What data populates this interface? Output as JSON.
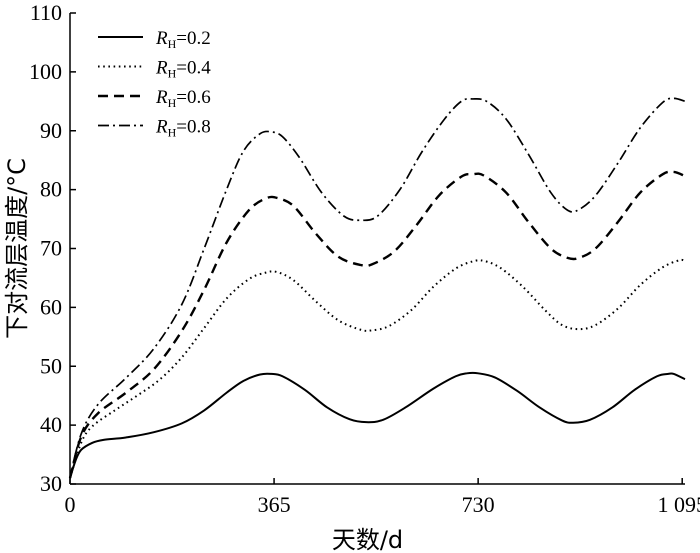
{
  "chart_data": {
    "type": "line",
    "title": "",
    "xlabel": "天数/d",
    "ylabel": "下对流层温度/°C",
    "xlim": [
      0,
      1100
    ],
    "ylim": [
      30,
      110
    ],
    "x_ticks": [
      0,
      365,
      730,
      1095
    ],
    "x_tick_labels": [
      "0",
      "365",
      "730",
      "1 095"
    ],
    "y_ticks": [
      30,
      40,
      50,
      60,
      70,
      80,
      90,
      100,
      110
    ],
    "y_tick_labels": [
      "30",
      "40",
      "50",
      "60",
      "70",
      "80",
      "90",
      "100",
      "110"
    ],
    "grid": false,
    "legend_position": "top-left",
    "series": [
      {
        "name": "R_H=0.2",
        "legend_main": "R",
        "legend_sub": "H",
        "legend_value": "=0.2",
        "dash": "solid",
        "points": [
          [
            0,
            31
          ],
          [
            10,
            34
          ],
          [
            20,
            35.8
          ],
          [
            40,
            37
          ],
          [
            60,
            37.5
          ],
          [
            100,
            37.9
          ],
          [
            150,
            38.8
          ],
          [
            200,
            40.3
          ],
          [
            240,
            42.5
          ],
          [
            280,
            45.5
          ],
          [
            310,
            47.5
          ],
          [
            340,
            48.6
          ],
          [
            360,
            48.7
          ],
          [
            380,
            48.3
          ],
          [
            420,
            46
          ],
          [
            460,
            43
          ],
          [
            500,
            41
          ],
          [
            530,
            40.5
          ],
          [
            560,
            40.9
          ],
          [
            600,
            43
          ],
          [
            650,
            46.2
          ],
          [
            690,
            48.3
          ],
          [
            710,
            48.8
          ],
          [
            730,
            48.8
          ],
          [
            760,
            48.1
          ],
          [
            800,
            45.8
          ],
          [
            840,
            43
          ],
          [
            880,
            40.8
          ],
          [
            900,
            40.4
          ],
          [
            930,
            40.9
          ],
          [
            970,
            43
          ],
          [
            1010,
            46
          ],
          [
            1050,
            48.3
          ],
          [
            1070,
            48.7
          ],
          [
            1080,
            48.7
          ],
          [
            1100,
            47.8
          ]
        ]
      },
      {
        "name": "R_H=0.4",
        "legend_main": "R",
        "legend_sub": "H",
        "legend_value": "=0.4",
        "dash": "dotted",
        "points": [
          [
            0,
            31
          ],
          [
            20,
            37
          ],
          [
            40,
            39.8
          ],
          [
            80,
            42.5
          ],
          [
            120,
            45
          ],
          [
            160,
            47.7
          ],
          [
            200,
            51.5
          ],
          [
            240,
            56.5
          ],
          [
            280,
            61.5
          ],
          [
            320,
            64.8
          ],
          [
            350,
            65.9
          ],
          [
            370,
            66
          ],
          [
            400,
            64.6
          ],
          [
            440,
            61
          ],
          [
            480,
            57.8
          ],
          [
            520,
            56.2
          ],
          [
            540,
            56.1
          ],
          [
            570,
            56.8
          ],
          [
            610,
            59.5
          ],
          [
            650,
            63.5
          ],
          [
            690,
            66.6
          ],
          [
            720,
            67.8
          ],
          [
            740,
            67.9
          ],
          [
            770,
            66.7
          ],
          [
            810,
            63.5
          ],
          [
            850,
            59.5
          ],
          [
            880,
            57
          ],
          [
            910,
            56.3
          ],
          [
            940,
            57
          ],
          [
            980,
            59.8
          ],
          [
            1020,
            63.8
          ],
          [
            1060,
            66.8
          ],
          [
            1090,
            68
          ],
          [
            1100,
            67.9
          ]
        ]
      },
      {
        "name": "R_H=0.6",
        "legend_main": "R",
        "legend_sub": "H",
        "legend_value": "=0.6",
        "dash": "dashed",
        "points": [
          [
            0,
            31
          ],
          [
            20,
            38
          ],
          [
            50,
            42
          ],
          [
            100,
            45.5
          ],
          [
            150,
            49.5
          ],
          [
            200,
            56
          ],
          [
            240,
            63
          ],
          [
            280,
            71
          ],
          [
            320,
            76.5
          ],
          [
            350,
            78.5
          ],
          [
            370,
            78.6
          ],
          [
            400,
            77.2
          ],
          [
            440,
            72.5
          ],
          [
            480,
            68.6
          ],
          [
            520,
            67.2
          ],
          [
            540,
            67.3
          ],
          [
            580,
            69.5
          ],
          [
            620,
            74
          ],
          [
            660,
            79
          ],
          [
            700,
            82.2
          ],
          [
            720,
            82.6
          ],
          [
            740,
            82.4
          ],
          [
            780,
            79.5
          ],
          [
            820,
            74.5
          ],
          [
            860,
            70
          ],
          [
            890,
            68.4
          ],
          [
            910,
            68.4
          ],
          [
            940,
            70
          ],
          [
            980,
            74.5
          ],
          [
            1020,
            79.5
          ],
          [
            1060,
            82.6
          ],
          [
            1080,
            83
          ],
          [
            1100,
            82.3
          ]
        ]
      },
      {
        "name": "R_H=0.8",
        "legend_main": "R",
        "legend_sub": "H",
        "legend_value": "=0.8",
        "dash": "dashdot",
        "points": [
          [
            0,
            31
          ],
          [
            20,
            38.5
          ],
          [
            50,
            43.5
          ],
          [
            100,
            48
          ],
          [
            150,
            53
          ],
          [
            200,
            60.5
          ],
          [
            240,
            70
          ],
          [
            280,
            80
          ],
          [
            310,
            86.5
          ],
          [
            340,
            89.5
          ],
          [
            360,
            89.8
          ],
          [
            380,
            89
          ],
          [
            410,
            85.5
          ],
          [
            450,
            79.5
          ],
          [
            490,
            75.5
          ],
          [
            520,
            74.8
          ],
          [
            550,
            75.5
          ],
          [
            590,
            80
          ],
          [
            630,
            86.5
          ],
          [
            670,
            92
          ],
          [
            700,
            95
          ],
          [
            720,
            95.4
          ],
          [
            745,
            95
          ],
          [
            780,
            92
          ],
          [
            820,
            86
          ],
          [
            860,
            79.5
          ],
          [
            890,
            76.5
          ],
          [
            910,
            76.6
          ],
          [
            940,
            79
          ],
          [
            980,
            84.5
          ],
          [
            1020,
            90.5
          ],
          [
            1060,
            94.8
          ],
          [
            1080,
            95.5
          ],
          [
            1100,
            95
          ]
        ]
      }
    ]
  }
}
